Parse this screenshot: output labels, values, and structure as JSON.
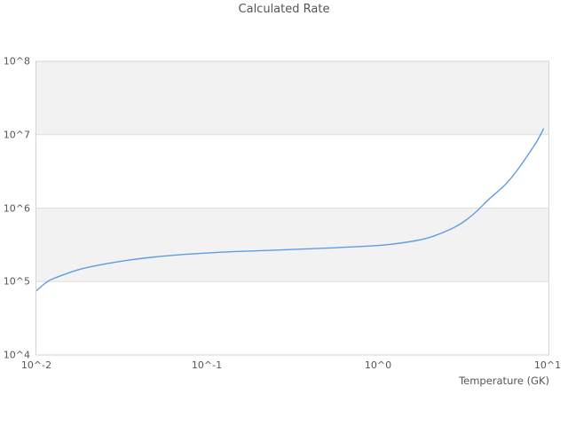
{
  "chart_data": {
    "type": "line",
    "title": "Calculated Rate",
    "xlabel": "Temperature (GK)",
    "ylabel": "",
    "x_scale": "log",
    "y_scale": "log",
    "xlim": [
      0.01,
      10
    ],
    "ylim": [
      10000,
      100000000
    ],
    "x_tick_labels": [
      "10^-2",
      "10^-1",
      "10^0",
      "10^1"
    ],
    "y_tick_labels_top_to_bottom": [
      "10^8",
      "10^7",
      "10^6",
      "10^5",
      "10^4"
    ],
    "legend_position": "none",
    "grid": "horizontal gridlines at each decade; alternating decades shaded gray (10^5-10^6 and 10^7-10^8)",
    "series": [
      {
        "name": "Calculated Rate",
        "color": "#5f9de2",
        "x": [
          0.01,
          0.0115,
          0.013,
          0.016,
          0.019,
          0.024,
          0.03,
          0.04,
          0.055,
          0.075,
          0.1,
          0.14,
          0.2,
          0.3,
          0.45,
          0.65,
          1.0,
          1.4,
          1.9,
          2.4,
          3.0,
          3.7,
          4.4,
          5.5,
          6.5,
          7.5,
          8.5,
          9.3
        ],
        "y": [
          74000,
          100000,
          113000,
          135000,
          152000,
          170000,
          186000,
          205000,
          222000,
          235000,
          245000,
          255000,
          263000,
          272000,
          282000,
          293000,
          308000,
          335000,
          380000,
          460000,
          590000,
          850000,
          1300000,
          2000000,
          3200000,
          5200000,
          8000000,
          12000000
        ]
      }
    ]
  },
  "colors": {
    "background": "#ffffff",
    "band_fill": "#f2f2f2",
    "grid_line": "#dedede",
    "plot_border": "#d4d4d4",
    "line": "#5f9de2",
    "text": "#555555"
  }
}
